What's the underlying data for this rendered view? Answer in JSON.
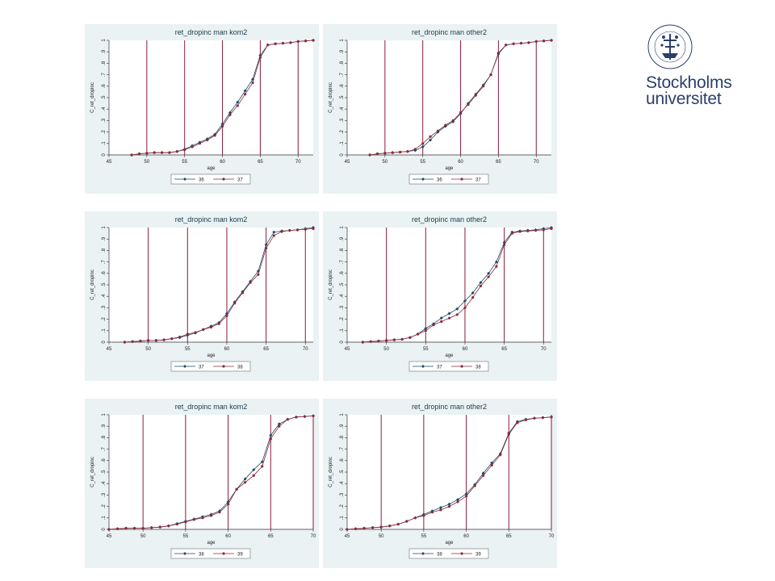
{
  "logo": {
    "line1": "Stockholms",
    "line2": "universitet",
    "seal_text": "STOCKHOLMS UNIVERSITET",
    "color": "#2b3f6b"
  },
  "colors": {
    "panel_bg": "#eaf2f3",
    "plot_bg": "#ffffff",
    "vline": "#8b1a3a",
    "series1": "#1a4a6b",
    "series2": "#8b2a3a"
  },
  "chart_data": [
    {
      "type": "line",
      "title": "ret_dropinc man kom2",
      "xlabel": "age",
      "ylabel": "C_ret_dropinc",
      "xlim": [
        45,
        72
      ],
      "ylim": [
        0,
        1
      ],
      "xticks": [
        "45",
        "50",
        "55",
        "60",
        "65",
        "70"
      ],
      "xtick_values": [
        45,
        50,
        55,
        60,
        65,
        70
      ],
      "yticks": [
        "0",
        ".1",
        ".2",
        ".3",
        ".4",
        ".5",
        ".6",
        ".7",
        ".8",
        ".9",
        "1"
      ],
      "vlines": [
        50,
        55,
        60,
        65,
        70
      ],
      "legend_position": "bottom",
      "series": [
        {
          "name": "36",
          "x": [
            48,
            49,
            50,
            51,
            52,
            53,
            54,
            55,
            56,
            57,
            58,
            59,
            60,
            61,
            62,
            63,
            64,
            65,
            66,
            67,
            68,
            69,
            70,
            71,
            72
          ],
          "values": [
            0.0,
            0.01,
            0.015,
            0.02,
            0.02,
            0.02,
            0.03,
            0.05,
            0.08,
            0.11,
            0.14,
            0.18,
            0.27,
            0.37,
            0.46,
            0.56,
            0.66,
            0.87,
            0.96,
            0.97,
            0.975,
            0.98,
            0.99,
            0.995,
            1.0
          ]
        },
        {
          "name": "37",
          "x": [
            48,
            49,
            50,
            51,
            52,
            53,
            54,
            55,
            56,
            57,
            58,
            59,
            60,
            61,
            62,
            63,
            64,
            65,
            66,
            67,
            68,
            69,
            70,
            71,
            72
          ],
          "values": [
            0.0,
            0.01,
            0.015,
            0.02,
            0.02,
            0.02,
            0.03,
            0.045,
            0.07,
            0.1,
            0.13,
            0.17,
            0.25,
            0.35,
            0.43,
            0.53,
            0.63,
            0.85,
            0.96,
            0.97,
            0.975,
            0.98,
            0.99,
            0.995,
            1.0
          ]
        }
      ]
    },
    {
      "type": "line",
      "title": "ret_dropinc man other2",
      "xlabel": "age",
      "ylabel": "C_ret_dropinc",
      "xlim": [
        45,
        72
      ],
      "ylim": [
        0,
        1
      ],
      "xticks": [
        "45",
        "50",
        "55",
        "60",
        "65",
        "70"
      ],
      "xtick_values": [
        45,
        50,
        55,
        60,
        65,
        70
      ],
      "yticks": [
        "0",
        ".1",
        ".2",
        ".3",
        ".4",
        ".5",
        ".6",
        ".7",
        ".8",
        ".9",
        "1"
      ],
      "vlines": [
        50,
        55,
        60,
        65,
        70
      ],
      "legend_position": "bottom",
      "series": [
        {
          "name": "36",
          "x": [
            48,
            49,
            50,
            51,
            52,
            53,
            54,
            55,
            56,
            57,
            58,
            59,
            60,
            61,
            62,
            63,
            64,
            65,
            66,
            67,
            68,
            69,
            70,
            71,
            72
          ],
          "values": [
            0.0,
            0.01,
            0.015,
            0.02,
            0.025,
            0.03,
            0.04,
            0.07,
            0.13,
            0.2,
            0.25,
            0.29,
            0.36,
            0.45,
            0.53,
            0.61,
            0.7,
            0.88,
            0.96,
            0.97,
            0.975,
            0.98,
            0.99,
            0.995,
            1.0
          ]
        },
        {
          "name": "37",
          "x": [
            48,
            49,
            50,
            51,
            52,
            53,
            54,
            55,
            56,
            57,
            58,
            59,
            60,
            61,
            62,
            63,
            64,
            65,
            66,
            67,
            68,
            69,
            70,
            71,
            72
          ],
          "values": [
            0.0,
            0.01,
            0.015,
            0.02,
            0.025,
            0.03,
            0.05,
            0.1,
            0.16,
            0.21,
            0.26,
            0.3,
            0.37,
            0.44,
            0.52,
            0.6,
            0.7,
            0.89,
            0.96,
            0.97,
            0.975,
            0.98,
            0.99,
            0.995,
            1.0
          ]
        }
      ]
    },
    {
      "type": "line",
      "title": "ret_dropinc man kom2",
      "xlabel": "age",
      "ylabel": "C_ret_dropinc",
      "xlim": [
        45,
        71
      ],
      "ylim": [
        0,
        1
      ],
      "xticks": [
        "45",
        "50",
        "55",
        "60",
        "65",
        "70"
      ],
      "xtick_values": [
        45,
        50,
        55,
        60,
        65,
        70
      ],
      "yticks": [
        "0",
        ".1",
        ".2",
        ".3",
        ".4",
        ".5",
        ".6",
        ".7",
        ".8",
        ".9",
        "1"
      ],
      "vlines": [
        50,
        55,
        60,
        65,
        70
      ],
      "legend_position": "bottom",
      "series": [
        {
          "name": "37",
          "x": [
            47,
            48,
            49,
            50,
            51,
            52,
            53,
            54,
            55,
            56,
            57,
            58,
            59,
            60,
            61,
            62,
            63,
            64,
            65,
            66,
            67,
            68,
            69,
            70,
            71
          ],
          "values": [
            0.0,
            0.005,
            0.01,
            0.015,
            0.015,
            0.02,
            0.03,
            0.04,
            0.06,
            0.08,
            0.11,
            0.14,
            0.17,
            0.25,
            0.35,
            0.44,
            0.53,
            0.62,
            0.85,
            0.96,
            0.97,
            0.975,
            0.98,
            0.99,
            1.0
          ]
        },
        {
          "name": "38",
          "x": [
            47,
            48,
            49,
            50,
            51,
            52,
            53,
            54,
            55,
            56,
            57,
            58,
            59,
            60,
            61,
            62,
            63,
            64,
            65,
            66,
            67,
            68,
            69,
            70,
            71
          ],
          "values": [
            0.0,
            0.005,
            0.01,
            0.015,
            0.015,
            0.02,
            0.03,
            0.045,
            0.07,
            0.085,
            0.11,
            0.13,
            0.16,
            0.23,
            0.34,
            0.43,
            0.52,
            0.59,
            0.82,
            0.93,
            0.965,
            0.975,
            0.98,
            0.985,
            0.99
          ]
        }
      ]
    },
    {
      "type": "line",
      "title": "ret_dropinc man other2",
      "xlabel": "age",
      "ylabel": "C_ret_dropinc",
      "xlim": [
        45,
        71
      ],
      "ylim": [
        0,
        1
      ],
      "xticks": [
        "45",
        "50",
        "55",
        "60",
        "65",
        "70"
      ],
      "xtick_values": [
        45,
        50,
        55,
        60,
        65,
        70
      ],
      "yticks": [
        "0",
        ".1",
        ".2",
        ".3",
        ".4",
        ".5",
        ".6",
        ".7",
        ".8",
        ".9",
        "1"
      ],
      "vlines": [
        50,
        55,
        60,
        65,
        70
      ],
      "legend_position": "bottom",
      "series": [
        {
          "name": "37",
          "x": [
            47,
            48,
            49,
            50,
            51,
            52,
            53,
            54,
            55,
            56,
            57,
            58,
            59,
            60,
            61,
            62,
            63,
            64,
            65,
            66,
            67,
            68,
            69,
            70,
            71
          ],
          "values": [
            0.0,
            0.005,
            0.01,
            0.015,
            0.02,
            0.025,
            0.04,
            0.07,
            0.12,
            0.16,
            0.21,
            0.25,
            0.29,
            0.36,
            0.43,
            0.52,
            0.6,
            0.7,
            0.87,
            0.96,
            0.97,
            0.975,
            0.98,
            0.99,
            1.0
          ]
        },
        {
          "name": "38",
          "x": [
            47,
            48,
            49,
            50,
            51,
            52,
            53,
            54,
            55,
            56,
            57,
            58,
            59,
            60,
            61,
            62,
            63,
            64,
            65,
            66,
            67,
            68,
            69,
            70,
            71
          ],
          "values": [
            0.0,
            0.005,
            0.01,
            0.015,
            0.02,
            0.025,
            0.04,
            0.07,
            0.1,
            0.15,
            0.18,
            0.21,
            0.24,
            0.3,
            0.39,
            0.49,
            0.57,
            0.66,
            0.85,
            0.95,
            0.965,
            0.97,
            0.975,
            0.98,
            0.99
          ]
        }
      ]
    },
    {
      "type": "line",
      "title": "ret_dropinc man kom2",
      "xlabel": "age",
      "ylabel": "C_ret_dropinc",
      "xlim": [
        46,
        70
      ],
      "ylim": [
        0,
        1
      ],
      "xticks": [
        "45",
        "50",
        "55",
        "60",
        "65",
        "70"
      ],
      "xtick_values": [
        45,
        50,
        55,
        60,
        65,
        70
      ],
      "yticks": [
        "0",
        ".1",
        ".2",
        ".3",
        ".4",
        ".5",
        ".6",
        ".7",
        ".8",
        ".9",
        "1"
      ],
      "vlines": [
        50,
        55,
        60,
        65,
        70
      ],
      "legend_position": "bottom",
      "series": [
        {
          "name": "38",
          "x": [
            46,
            47,
            48,
            49,
            50,
            51,
            52,
            53,
            54,
            55,
            56,
            57,
            58,
            59,
            60,
            61,
            62,
            63,
            64,
            65,
            66,
            67,
            68,
            69,
            70
          ],
          "values": [
            0.0,
            0.005,
            0.01,
            0.01,
            0.01,
            0.015,
            0.02,
            0.03,
            0.05,
            0.07,
            0.09,
            0.11,
            0.13,
            0.16,
            0.24,
            0.35,
            0.44,
            0.52,
            0.59,
            0.82,
            0.92,
            0.96,
            0.98,
            0.985,
            0.99
          ]
        },
        {
          "name": "39",
          "x": [
            46,
            47,
            48,
            49,
            50,
            51,
            52,
            53,
            54,
            55,
            56,
            57,
            58,
            59,
            60,
            61,
            62,
            63,
            64,
            65,
            66,
            67,
            68,
            69,
            70
          ],
          "values": [
            0.0,
            0.005,
            0.01,
            0.01,
            0.01,
            0.015,
            0.02,
            0.03,
            0.045,
            0.065,
            0.085,
            0.1,
            0.12,
            0.15,
            0.22,
            0.35,
            0.41,
            0.47,
            0.55,
            0.79,
            0.9,
            0.96,
            0.98,
            0.985,
            0.99
          ]
        }
      ]
    },
    {
      "type": "line",
      "title": "ret_dropinc man other2",
      "xlabel": "age",
      "ylabel": "C_ret_dropinc",
      "xlim": [
        46,
        70
      ],
      "ylim": [
        0,
        1
      ],
      "xticks": [
        "45",
        "50",
        "55",
        "60",
        "65",
        "70"
      ],
      "xtick_values": [
        45,
        50,
        55,
        60,
        65,
        70
      ],
      "yticks": [
        "0",
        ".1",
        ".2",
        ".3",
        ".4",
        ".5",
        ".6",
        ".7",
        ".8",
        ".9",
        "1"
      ],
      "vlines": [
        50,
        55,
        60,
        65,
        70
      ],
      "legend_position": "bottom",
      "series": [
        {
          "name": "38",
          "x": [
            46,
            47,
            48,
            49,
            50,
            51,
            52,
            53,
            54,
            55,
            56,
            57,
            58,
            59,
            60,
            61,
            62,
            63,
            64,
            65,
            66,
            67,
            68,
            69,
            70
          ],
          "values": [
            0.0,
            0.005,
            0.01,
            0.015,
            0.02,
            0.03,
            0.045,
            0.07,
            0.1,
            0.13,
            0.16,
            0.19,
            0.22,
            0.26,
            0.31,
            0.39,
            0.49,
            0.58,
            0.66,
            0.84,
            0.94,
            0.96,
            0.97,
            0.975,
            0.98
          ]
        },
        {
          "name": "39",
          "x": [
            46,
            47,
            48,
            49,
            50,
            51,
            52,
            53,
            54,
            55,
            56,
            57,
            58,
            59,
            60,
            61,
            62,
            63,
            64,
            65,
            66,
            67,
            68,
            69,
            70
          ],
          "values": [
            0.0,
            0.005,
            0.01,
            0.015,
            0.02,
            0.03,
            0.045,
            0.07,
            0.1,
            0.12,
            0.15,
            0.17,
            0.2,
            0.24,
            0.29,
            0.38,
            0.47,
            0.56,
            0.65,
            0.83,
            0.93,
            0.955,
            0.97,
            0.975,
            0.98
          ]
        }
      ]
    }
  ]
}
